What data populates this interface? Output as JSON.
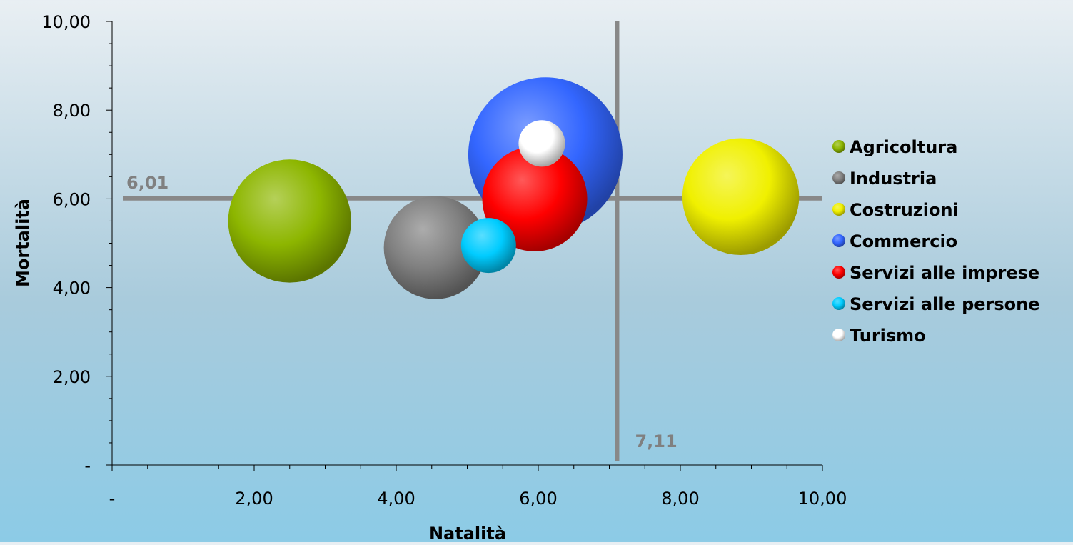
{
  "chart_data": {
    "type": "bubble",
    "xlabel": "Natalità",
    "ylabel": "Mortalità",
    "xlim": [
      0,
      10
    ],
    "ylim": [
      0,
      10
    ],
    "x_ticks": [
      {
        "value": 0,
        "label": "-"
      },
      {
        "value": 2,
        "label": "2,00"
      },
      {
        "value": 4,
        "label": "4,00"
      },
      {
        "value": 6,
        "label": "6,00"
      },
      {
        "value": 8,
        "label": "8,00"
      },
      {
        "value": 10,
        "label": "10,00"
      }
    ],
    "y_ticks": [
      {
        "value": 0,
        "label": "-"
      },
      {
        "value": 2,
        "label": "2,00"
      },
      {
        "value": 4,
        "label": "4,00"
      },
      {
        "value": 6,
        "label": "6,00"
      },
      {
        "value": 8,
        "label": "8,00"
      },
      {
        "value": 10,
        "label": "10,00"
      }
    ],
    "reference_lines": {
      "horizontal": {
        "value": 6.01,
        "label": "6,01"
      },
      "vertical": {
        "value": 7.11,
        "label": "7,11"
      }
    },
    "legend_position": "right",
    "series": [
      {
        "name": "Agricoltura",
        "x": 2.5,
        "y": 5.5,
        "size": 7.0,
        "color": "#8db600"
      },
      {
        "name": "Industria",
        "x": 4.55,
        "y": 4.9,
        "size": 4.9,
        "color": "#808080"
      },
      {
        "name": "Costruzioni",
        "x": 8.85,
        "y": 6.05,
        "size": 6.3,
        "color": "#f0f000"
      },
      {
        "name": "Commercio",
        "x": 6.1,
        "y": 7.0,
        "size": 11.0,
        "color": "#3366ff"
      },
      {
        "name": "Servizi alle imprese",
        "x": 5.95,
        "y": 6.0,
        "size": 5.1,
        "color": "#ff0000"
      },
      {
        "name": "Servizi alle persone",
        "x": 5.3,
        "y": 4.95,
        "size": 1.4,
        "color": "#00ccff"
      },
      {
        "name": "Turismo",
        "x": 6.05,
        "y": 7.25,
        "size": 1.0,
        "color": "#ffffff"
      }
    ]
  }
}
